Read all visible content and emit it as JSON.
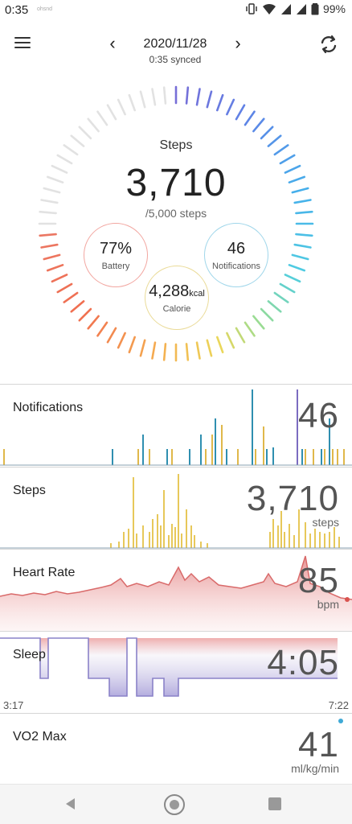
{
  "status_bar": {
    "time": "0:35",
    "note": "ohsnd",
    "battery": "99%",
    "icons": [
      "vibrate-icon",
      "wifi-icon",
      "signal-icon",
      "signal-icon",
      "battery-icon"
    ]
  },
  "header": {
    "date": "2020/11/28",
    "synced": "0:35 synced",
    "icons": [
      "menu-icon",
      "chevron-left-icon",
      "chevron-right-icon",
      "sync-icon"
    ]
  },
  "summary": {
    "steps_label": "Steps",
    "steps_value": "3,710",
    "steps_goal": "/5,000 steps",
    "progress": 0.742,
    "battery": {
      "value": "77%",
      "label": "Battery",
      "color": "#f2a6a0"
    },
    "notifications": {
      "value": "46",
      "label": "Notifications",
      "color": "#9fd6ea"
    },
    "calorie": {
      "value": "4,288",
      "unit": "kcal",
      "label": "Calorie",
      "color": "#eadb98"
    }
  },
  "metrics": {
    "notifications": {
      "label": "Notifications",
      "value": "46"
    },
    "steps": {
      "label": "Steps",
      "value": "3,710",
      "unit": "steps"
    },
    "heart_rate": {
      "label": "Heart Rate",
      "value": "85",
      "unit": "bpm"
    },
    "sleep": {
      "label": "Sleep",
      "value": "4:05",
      "start": "3:17",
      "end": "7:22"
    },
    "vo2max": {
      "label": "VO2 Max",
      "value": "41",
      "unit": "ml/kg/min"
    }
  },
  "colors": {
    "notif_blue": "#2f8fb0",
    "notif_gold": "#e0b84a",
    "notif_purple": "#7b6cc0",
    "steps_gold": "#e7c85a",
    "heart_red": "#d96a6a",
    "sleep_purple": "#8a82c8"
  },
  "navbar": {
    "icons": [
      "back-icon",
      "home-icon",
      "recents-icon"
    ]
  }
}
